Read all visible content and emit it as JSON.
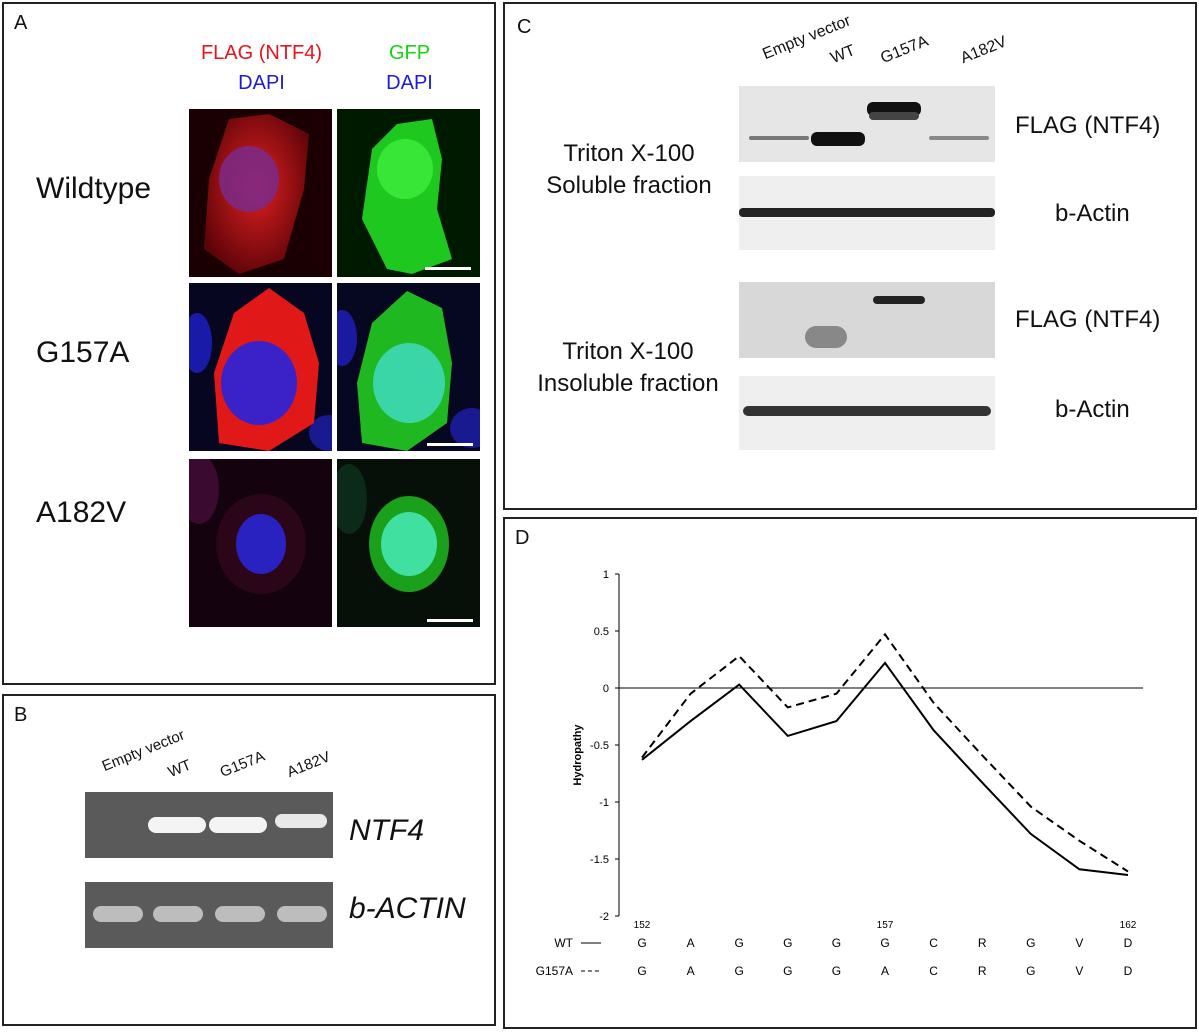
{
  "panel_a": {
    "label": "A",
    "col1_line1": "FLAG (NTF4)",
    "col1_line2": "DAPI",
    "col2_line1": "GFP",
    "col2_line2": "DAPI",
    "rows": [
      "Wildtype",
      "G157A",
      "A182V"
    ],
    "colors": {
      "flag": "#e8141b",
      "gfp": "#11d611",
      "dapi": "#1c1cd6"
    }
  },
  "panel_b": {
    "label": "B",
    "lanes": [
      "Empty vector",
      "WT",
      "G157A",
      "A182V"
    ],
    "gel1_label": "NTF4",
    "gel2_label": "b-ACTIN"
  },
  "panel_c": {
    "label": "C",
    "lanes": [
      "Empty vector",
      "WT",
      "G157A",
      "A182V"
    ],
    "group1_line1": "Triton X-100",
    "group1_line2": "Soluble fraction",
    "group2_line1": "Triton X-100",
    "group2_line2": "Insoluble fraction",
    "blot_labels": [
      "FLAG (NTF4)",
      "b-Actin",
      "FLAG (NTF4)",
      "b-Actin"
    ]
  },
  "panel_d": {
    "label": "D",
    "chart_data": {
      "type": "line",
      "ylabel": "Hydropathy",
      "ylim": [
        -2,
        1
      ],
      "yticks": [
        "1",
        "0.5",
        "0",
        "-0.5",
        "-1",
        "-1.5",
        "-2"
      ],
      "position_labels": [
        "152",
        "157",
        "162"
      ],
      "x": [
        152,
        153,
        154,
        155,
        156,
        157,
        158,
        159,
        160,
        161,
        162
      ],
      "series": [
        {
          "name": "WT",
          "style": "solid",
          "sequence": [
            "G",
            "A",
            "G",
            "G",
            "G",
            "G",
            "C",
            "R",
            "G",
            "V",
            "D"
          ],
          "values": [
            -0.63,
            -0.29,
            0.03,
            -0.42,
            -0.29,
            0.22,
            -0.37,
            -0.83,
            -1.28,
            -1.59,
            -1.64
          ]
        },
        {
          "name": "G157A",
          "style": "dashed",
          "sequence": [
            "G",
            "A",
            "G",
            "G",
            "G",
            "A",
            "C",
            "R",
            "G",
            "V",
            "D"
          ],
          "values": [
            -0.61,
            -0.05,
            0.28,
            -0.17,
            -0.05,
            0.47,
            -0.13,
            -0.59,
            -1.04,
            -1.34,
            -1.61
          ]
        }
      ],
      "legend_solid": "WT",
      "legend_dashed": "G157A"
    }
  }
}
